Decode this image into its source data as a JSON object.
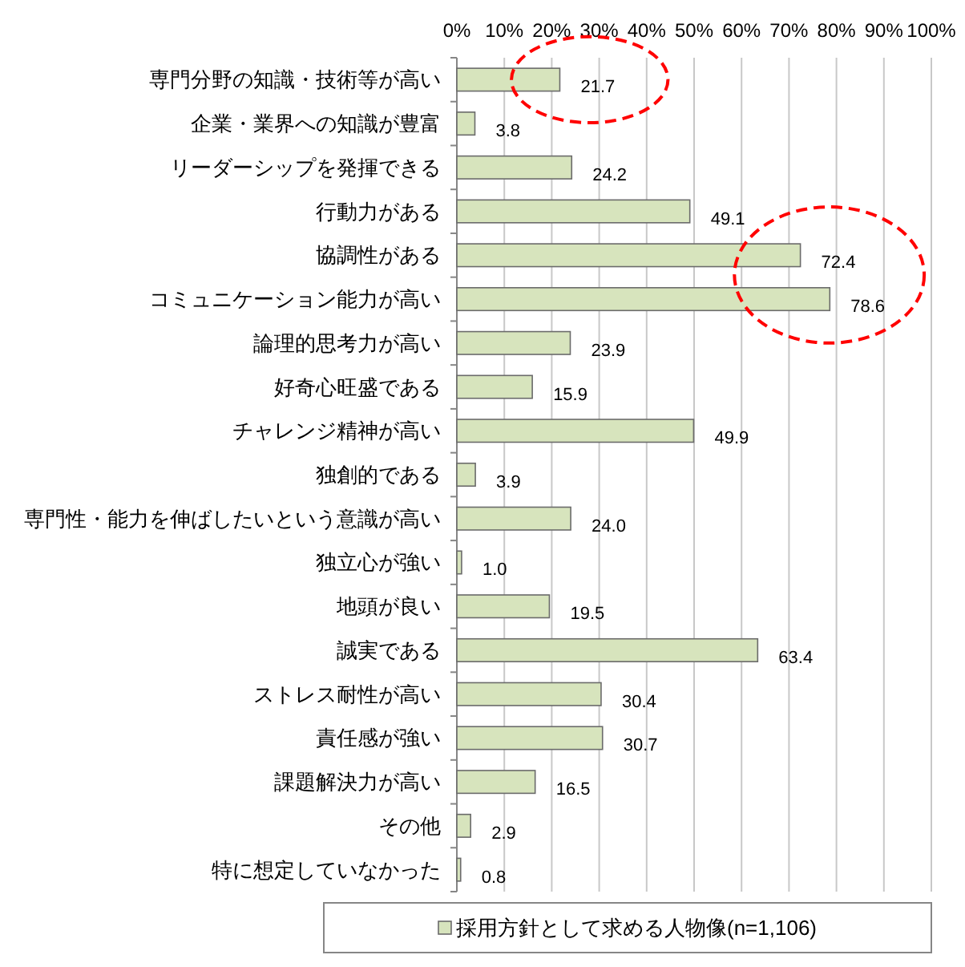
{
  "chart_data": {
    "type": "bar",
    "orientation": "horizontal",
    "categories": [
      "専門分野の知識・技術等が高い",
      "企業・業界への知識が豊富",
      "リーダーシップを発揮できる",
      "行動力がある",
      "協調性がある",
      "コミュニケーション能力が高い",
      "論理的思考力が高い",
      "好奇心旺盛である",
      "チャレンジ精神が高い",
      "独創的である",
      "専門性・能力を伸ばしたいという意識が高い",
      "独立心が強い",
      "地頭が良い",
      "誠実である",
      "ストレス耐性が高い",
      "責任感が強い",
      "課題解決力が高い",
      "その他",
      "特に想定していなかった"
    ],
    "series": [
      {
        "name": "採用方針として求める人物像(n=1,106)",
        "color": "#d7e4bd",
        "values": [
          21.7,
          3.8,
          24.2,
          49.1,
          72.4,
          78.6,
          23.9,
          15.9,
          49.9,
          3.9,
          24.0,
          1.0,
          19.5,
          63.4,
          30.4,
          30.7,
          16.5,
          2.9,
          0.8
        ],
        "value_labels": [
          "21.7",
          "3.8",
          "24.2",
          "49.1",
          "72.4",
          "78.6",
          "23.9",
          "15.9",
          "49.9",
          "3.9",
          "24.0",
          "1.0",
          "19.5",
          "63.4",
          "30.4",
          "30.7",
          "16.5",
          "2.9",
          "0.8"
        ]
      }
    ],
    "xlim": [
      0,
      100
    ],
    "xticks": [
      {
        "value": 0,
        "label": "0%"
      },
      {
        "value": 10,
        "label": "10%"
      },
      {
        "value": 20,
        "label": "20%"
      },
      {
        "value": 30,
        "label": "30%"
      },
      {
        "value": 40,
        "label": "40%"
      },
      {
        "value": 50,
        "label": "50%"
      },
      {
        "value": 60,
        "label": "60%"
      },
      {
        "value": 70,
        "label": "70%"
      },
      {
        "value": 80,
        "label": "80%"
      },
      {
        "value": 90,
        "label": "90%"
      },
      {
        "value": 100,
        "label": "100%"
      }
    ],
    "grid": "x",
    "legend": "bottom"
  }
}
